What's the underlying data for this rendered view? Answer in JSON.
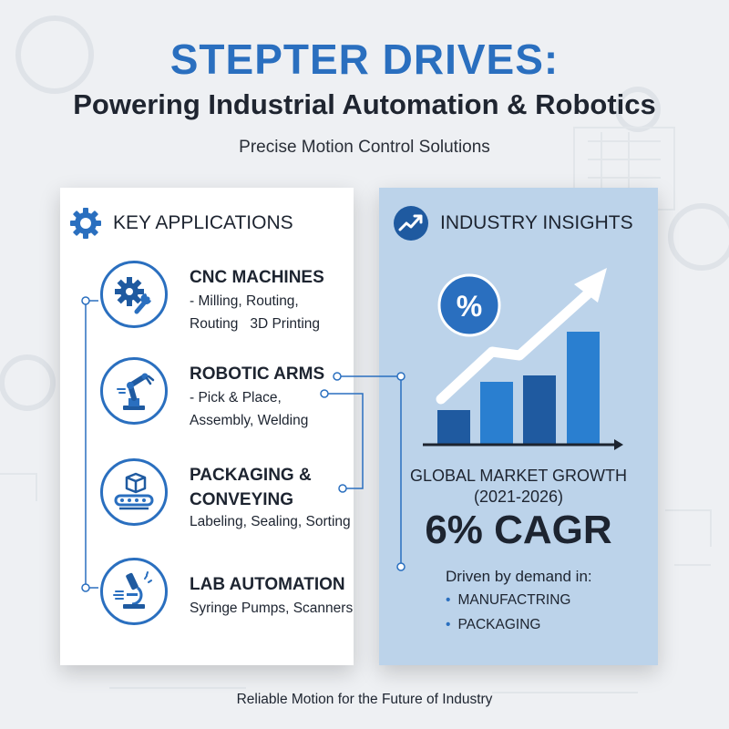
{
  "header": {
    "title": "STEPTER DRIVES:",
    "subtitle": "Powering Industrial Automation & Robotics",
    "tagline": "Precise Motion Control Solutions"
  },
  "left_panel": {
    "heading": "KEY APPLICATIONS",
    "heading_icon": "gear-icon",
    "items": [
      {
        "title_lines": [
          "CNC MACHINES"
        ],
        "desc_lines": [
          "- Milling, Routing,",
          "Routing   3D Printing"
        ],
        "icon": "gear-wrench-icon"
      },
      {
        "title_lines": [
          "ROBOTIC ARMS"
        ],
        "desc_lines": [
          "- Pick & Place,",
          "Assembly, Welding"
        ],
        "icon": "robot-arm-icon"
      },
      {
        "title_lines": [
          "PACKAGING &",
          "CONVEYING"
        ],
        "desc_lines": [
          "Labeling, Sealing, Sorting"
        ],
        "icon": "conveyor-box-icon"
      },
      {
        "title_lines": [
          "LAB AUTOMATION"
        ],
        "desc_lines": [
          "Syringe Pumps, Scanners"
        ],
        "icon": "microscope-icon"
      }
    ]
  },
  "right_panel": {
    "heading": "INDUSTRY INSIGHTS",
    "heading_icon": "trend-up-icon",
    "percent_badge": "%",
    "growth_label_1": "GLOBAL MARKET GROWTH",
    "growth_label_2": "(2021-2026)",
    "cagr": "6% CAGR",
    "driven_by": "Driven by demand in:",
    "sectors": [
      "MANUFACTRING",
      "PACKAGING"
    ]
  },
  "footer": "Reliable Motion for the Future of Industry",
  "colors": {
    "accent": "#2a6fbf",
    "dark_bar": "#1f5aa0",
    "panel_blue": "#bcd3ea"
  }
}
